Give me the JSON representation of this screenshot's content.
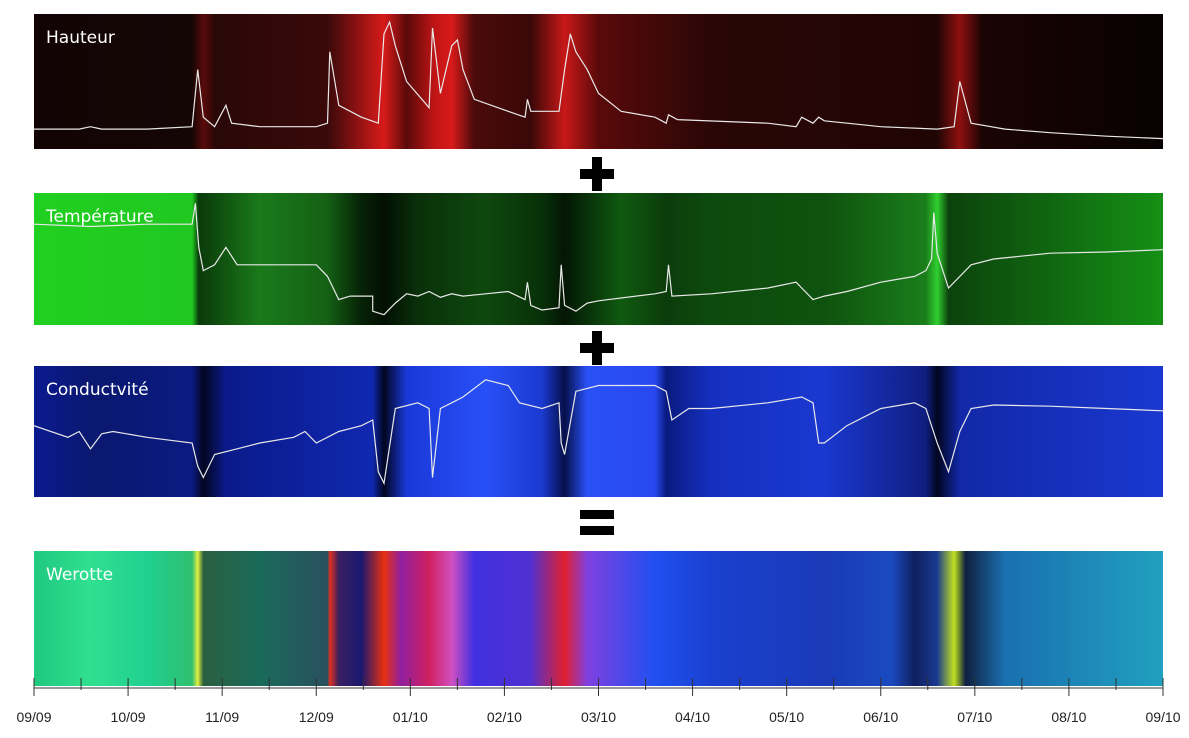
{
  "chart_data": {
    "type": "line",
    "x_axis": {
      "tick_labels": [
        "09/09",
        "10/09",
        "11/09",
        "12/09",
        "01/10",
        "02/10",
        "03/10",
        "04/10",
        "05/10",
        "06/10",
        "07/10",
        "08/10",
        "09/10"
      ]
    },
    "panels": [
      {
        "label": "Hauteur",
        "color": "#ff2020",
        "background": "#150505",
        "values": [
          [
            0,
            0.1
          ],
          [
            0.04,
            0.1
          ],
          [
            0.05,
            0.12
          ],
          [
            0.06,
            0.1
          ],
          [
            0.1,
            0.1
          ],
          [
            0.14,
            0.12
          ],
          [
            0.145,
            0.6
          ],
          [
            0.15,
            0.2
          ],
          [
            0.16,
            0.12
          ],
          [
            0.17,
            0.3
          ],
          [
            0.175,
            0.15
          ],
          [
            0.2,
            0.12
          ],
          [
            0.25,
            0.12
          ],
          [
            0.26,
            0.15
          ],
          [
            0.262,
            0.75
          ],
          [
            0.27,
            0.3
          ],
          [
            0.29,
            0.2
          ],
          [
            0.305,
            0.15
          ],
          [
            0.31,
            0.9
          ],
          [
            0.315,
            1.0
          ],
          [
            0.32,
            0.8
          ],
          [
            0.33,
            0.5
          ],
          [
            0.35,
            0.28
          ],
          [
            0.353,
            0.95
          ],
          [
            0.36,
            0.4
          ],
          [
            0.37,
            0.8
          ],
          [
            0.375,
            0.85
          ],
          [
            0.38,
            0.6
          ],
          [
            0.39,
            0.35
          ],
          [
            0.42,
            0.25
          ],
          [
            0.435,
            0.2
          ],
          [
            0.437,
            0.35
          ],
          [
            0.44,
            0.25
          ],
          [
            0.465,
            0.25
          ],
          [
            0.47,
            0.6
          ],
          [
            0.475,
            0.9
          ],
          [
            0.48,
            0.75
          ],
          [
            0.49,
            0.6
          ],
          [
            0.5,
            0.4
          ],
          [
            0.52,
            0.25
          ],
          [
            0.55,
            0.2
          ],
          [
            0.56,
            0.15
          ],
          [
            0.562,
            0.22
          ],
          [
            0.57,
            0.18
          ],
          [
            0.65,
            0.15
          ],
          [
            0.675,
            0.12
          ],
          [
            0.68,
            0.2
          ],
          [
            0.69,
            0.15
          ],
          [
            0.695,
            0.2
          ],
          [
            0.7,
            0.17
          ],
          [
            0.75,
            0.12
          ],
          [
            0.8,
            0.1
          ],
          [
            0.815,
            0.12
          ],
          [
            0.82,
            0.5
          ],
          [
            0.83,
            0.15
          ],
          [
            0.86,
            0.1
          ],
          [
            0.9,
            0.07
          ],
          [
            0.95,
            0.04
          ],
          [
            1,
            0.02
          ]
        ]
      },
      {
        "label": "Température",
        "color": "#30c030",
        "background": "#0c4a0c",
        "values": [
          [
            0,
            0.8
          ],
          [
            0.05,
            0.78
          ],
          [
            0.1,
            0.8
          ],
          [
            0.14,
            0.8
          ],
          [
            0.143,
            0.98
          ],
          [
            0.146,
            0.6
          ],
          [
            0.15,
            0.4
          ],
          [
            0.16,
            0.45
          ],
          [
            0.17,
            0.6
          ],
          [
            0.18,
            0.45
          ],
          [
            0.2,
            0.45
          ],
          [
            0.25,
            0.45
          ],
          [
            0.26,
            0.35
          ],
          [
            0.27,
            0.15
          ],
          [
            0.28,
            0.18
          ],
          [
            0.3,
            0.18
          ],
          [
            0.3,
            0.05
          ],
          [
            0.31,
            0.02
          ],
          [
            0.32,
            0.12
          ],
          [
            0.33,
            0.2
          ],
          [
            0.34,
            0.18
          ],
          [
            0.35,
            0.22
          ],
          [
            0.36,
            0.17
          ],
          [
            0.37,
            0.2
          ],
          [
            0.38,
            0.18
          ],
          [
            0.4,
            0.2
          ],
          [
            0.42,
            0.22
          ],
          [
            0.435,
            0.15
          ],
          [
            0.437,
            0.3
          ],
          [
            0.44,
            0.1
          ],
          [
            0.45,
            0.06
          ],
          [
            0.465,
            0.08
          ],
          [
            0.467,
            0.45
          ],
          [
            0.47,
            0.1
          ],
          [
            0.48,
            0.05
          ],
          [
            0.49,
            0.12
          ],
          [
            0.5,
            0.14
          ],
          [
            0.55,
            0.2
          ],
          [
            0.56,
            0.22
          ],
          [
            0.562,
            0.45
          ],
          [
            0.565,
            0.18
          ],
          [
            0.6,
            0.2
          ],
          [
            0.65,
            0.25
          ],
          [
            0.675,
            0.3
          ],
          [
            0.68,
            0.25
          ],
          [
            0.69,
            0.15
          ],
          [
            0.7,
            0.18
          ],
          [
            0.72,
            0.22
          ],
          [
            0.75,
            0.3
          ],
          [
            0.78,
            0.35
          ],
          [
            0.79,
            0.4
          ],
          [
            0.795,
            0.5
          ],
          [
            0.797,
            0.9
          ],
          [
            0.8,
            0.55
          ],
          [
            0.81,
            0.25
          ],
          [
            0.82,
            0.35
          ],
          [
            0.83,
            0.45
          ],
          [
            0.85,
            0.5
          ],
          [
            0.9,
            0.55
          ],
          [
            0.95,
            0.56
          ],
          [
            1,
            0.58
          ]
        ]
      },
      {
        "label": "Conductvité",
        "color": "#2040f0",
        "background": "#0a1a90",
        "values": [
          [
            0,
            0.55
          ],
          [
            0.03,
            0.45
          ],
          [
            0.04,
            0.5
          ],
          [
            0.05,
            0.35
          ],
          [
            0.06,
            0.48
          ],
          [
            0.07,
            0.5
          ],
          [
            0.1,
            0.45
          ],
          [
            0.14,
            0.4
          ],
          [
            0.145,
            0.2
          ],
          [
            0.15,
            0.1
          ],
          [
            0.16,
            0.3
          ],
          [
            0.18,
            0.35
          ],
          [
            0.2,
            0.4
          ],
          [
            0.23,
            0.45
          ],
          [
            0.24,
            0.5
          ],
          [
            0.25,
            0.4
          ],
          [
            0.27,
            0.5
          ],
          [
            0.29,
            0.55
          ],
          [
            0.3,
            0.6
          ],
          [
            0.305,
            0.15
          ],
          [
            0.31,
            0.05
          ],
          [
            0.32,
            0.7
          ],
          [
            0.34,
            0.75
          ],
          [
            0.35,
            0.7
          ],
          [
            0.353,
            0.1
          ],
          [
            0.36,
            0.7
          ],
          [
            0.37,
            0.75
          ],
          [
            0.38,
            0.8
          ],
          [
            0.4,
            0.95
          ],
          [
            0.42,
            0.9
          ],
          [
            0.43,
            0.75
          ],
          [
            0.45,
            0.7
          ],
          [
            0.465,
            0.75
          ],
          [
            0.467,
            0.4
          ],
          [
            0.47,
            0.3
          ],
          [
            0.48,
            0.85
          ],
          [
            0.5,
            0.9
          ],
          [
            0.55,
            0.9
          ],
          [
            0.56,
            0.85
          ],
          [
            0.565,
            0.6
          ],
          [
            0.58,
            0.7
          ],
          [
            0.6,
            0.7
          ],
          [
            0.65,
            0.75
          ],
          [
            0.68,
            0.8
          ],
          [
            0.69,
            0.75
          ],
          [
            0.695,
            0.4
          ],
          [
            0.7,
            0.4
          ],
          [
            0.72,
            0.55
          ],
          [
            0.75,
            0.7
          ],
          [
            0.78,
            0.75
          ],
          [
            0.79,
            0.7
          ],
          [
            0.8,
            0.4
          ],
          [
            0.81,
            0.15
          ],
          [
            0.82,
            0.5
          ],
          [
            0.83,
            0.7
          ],
          [
            0.85,
            0.73
          ],
          [
            0.9,
            0.72
          ],
          [
            0.95,
            0.7
          ],
          [
            1,
            0.68
          ]
        ]
      },
      {
        "label": "Werotte",
        "color": "#20b0c0",
        "background": "#1a40d0",
        "values": []
      }
    ]
  }
}
